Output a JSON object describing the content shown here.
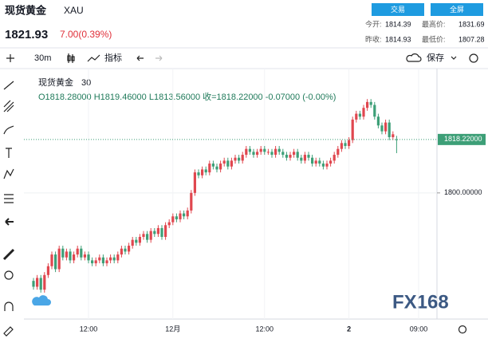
{
  "header": {
    "title": "现货黄金",
    "symbol": "XAU",
    "price": "1821.93",
    "change": "7.00(0.39%)",
    "buttons": [
      "交易",
      "全屏"
    ],
    "stats": [
      {
        "label": "今开:",
        "value": "1814.39"
      },
      {
        "label": "最高价:",
        "value": "1831.69"
      },
      {
        "label": "昨收:",
        "value": "1814.93"
      },
      {
        "label": "最低价:",
        "value": "1807.28"
      }
    ]
  },
  "toolbar": {
    "interval": "30m",
    "indicators": "指标",
    "save": "保存"
  },
  "watermark": "FX168",
  "chart_data": {
    "type": "candlestick",
    "legend": {
      "name": "现货黄金",
      "interval": "30",
      "ohlc": "O1818.28000 H1819.46000 L1813.56000 收=1818.22000 -0.07000 (-0.00%)"
    },
    "up_color": "#e0474f",
    "down_color": "#3d9f77",
    "categories": [
      null,
      null,
      null,
      null,
      null,
      null,
      null,
      null,
      null,
      null,
      null,
      null,
      null,
      null,
      null,
      "12:00",
      null,
      null,
      null,
      null,
      null,
      null,
      null,
      null,
      null,
      null,
      null,
      null,
      null,
      null,
      null,
      null,
      null,
      null,
      null,
      null,
      null,
      null,
      "12月",
      null,
      null,
      null,
      null,
      null,
      null,
      null,
      null,
      null,
      null,
      null,
      null,
      null,
      null,
      null,
      null,
      null,
      null,
      null,
      null,
      null,
      null,
      null,
      null,
      "12:00",
      null,
      null,
      null,
      null,
      null,
      null,
      null,
      null,
      null,
      null,
      null,
      null,
      null,
      null,
      null,
      null,
      null,
      null,
      null,
      null,
      null,
      null,
      "2",
      null,
      null,
      null,
      null,
      null,
      null,
      null,
      null,
      null,
      null,
      null,
      null,
      null,
      null,
      null,
      null,
      null,
      null,
      "09:00"
    ],
    "open": [
      1770,
      1768,
      1771,
      1767,
      1772,
      1775,
      1779,
      1774,
      1781,
      1778,
      1780,
      1777,
      1779,
      1781,
      1778,
      1779,
      1777,
      1776,
      1777,
      1778,
      1776,
      1777,
      1778,
      1777,
      1779,
      1781,
      1780,
      1782,
      1784,
      1783,
      1785,
      1786,
      1784,
      1787,
      1786,
      1788,
      1785,
      1789,
      1790,
      1792,
      1791,
      1793,
      1792,
      1794,
      1800,
      1807,
      1806,
      1808,
      1807,
      1810,
      1809,
      1808,
      1810,
      1811,
      1809,
      1811,
      1812,
      1811,
      1813,
      1815,
      1814,
      1813,
      1814,
      1815,
      1814,
      1814,
      1813,
      1815,
      1814,
      1813,
      1812,
      1813,
      1814,
      1812,
      1811,
      1813,
      1812,
      1810,
      1811,
      1810,
      1809,
      1810,
      1811,
      1813,
      1815,
      1817,
      1816,
      1818,
      1825,
      1827,
      1826,
      1829,
      1831,
      1830,
      1826,
      1823,
      1821,
      1824,
      1819,
      1818.28,
      null,
      null,
      null,
      null,
      null,
      null
    ],
    "high": [
      1771,
      1772,
      1772,
      1773,
      1776,
      1780,
      1780,
      1782,
      1782,
      1781,
      1781,
      1780,
      1782,
      1782,
      1780,
      1780,
      1778,
      1778,
      1779,
      1779,
      1778,
      1779,
      1779,
      1780,
      1782,
      1782,
      1783,
      1785,
      1785,
      1786,
      1787,
      1787,
      1788,
      1788,
      1789,
      1789,
      1790,
      1791,
      1793,
      1793,
      1794,
      1794,
      1795,
      1801,
      1808,
      1808,
      1809,
      1809,
      1811,
      1811,
      1810,
      1811,
      1812,
      1812,
      1812,
      1813,
      1813,
      1814,
      1816,
      1816,
      1815,
      1815,
      1816,
      1816,
      1815,
      1815,
      1816,
      1816,
      1815,
      1814,
      1814,
      1815,
      1815,
      1813,
      1814,
      1814,
      1813,
      1812,
      1812,
      1811,
      1811,
      1812,
      1814,
      1816,
      1818,
      1818,
      1819,
      1826,
      1828,
      1828,
      1830,
      1832,
      1832,
      1831,
      1827,
      1824,
      1825,
      1825,
      1821,
      1819.46,
      null,
      null,
      null,
      null,
      null,
      null
    ],
    "low": [
      1767,
      1767,
      1766,
      1766,
      1771,
      1774,
      1773,
      1773,
      1777,
      1777,
      1776,
      1776,
      1778,
      1777,
      1777,
      1776,
      1775,
      1775,
      1776,
      1775,
      1775,
      1776,
      1776,
      1776,
      1778,
      1779,
      1779,
      1781,
      1782,
      1782,
      1784,
      1783,
      1783,
      1785,
      1785,
      1784,
      1784,
      1788,
      1789,
      1790,
      1790,
      1791,
      1791,
      1793,
      1799,
      1805,
      1805,
      1806,
      1806,
      1808,
      1807,
      1807,
      1809,
      1808,
      1808,
      1810,
      1810,
      1810,
      1812,
      1813,
      1812,
      1812,
      1813,
      1813,
      1813,
      1812,
      1812,
      1813,
      1812,
      1811,
      1811,
      1812,
      1811,
      1810,
      1810,
      1811,
      1809,
      1809,
      1809,
      1808,
      1808,
      1809,
      1810,
      1812,
      1814,
      1815,
      1815,
      1817,
      1824,
      1825,
      1825,
      1828,
      1829,
      1825,
      1822,
      1820,
      1820,
      1818,
      1818,
      1813.56,
      null,
      null,
      null,
      null,
      null,
      null
    ],
    "close": [
      1768,
      1771,
      1767,
      1772,
      1775,
      1779,
      1774,
      1781,
      1778,
      1780,
      1777,
      1779,
      1781,
      1778,
      1779,
      1777,
      1776,
      1777,
      1778,
      1776,
      1777,
      1778,
      1777,
      1779,
      1781,
      1780,
      1782,
      1784,
      1783,
      1785,
      1786,
      1784,
      1787,
      1786,
      1788,
      1785,
      1789,
      1790,
      1792,
      1791,
      1793,
      1792,
      1794,
      1800,
      1807,
      1806,
      1808,
      1807,
      1810,
      1809,
      1808,
      1810,
      1811,
      1809,
      1811,
      1812,
      1811,
      1813,
      1815,
      1814,
      1813,
      1814,
      1815,
      1814,
      1814,
      1813,
      1815,
      1814,
      1813,
      1812,
      1813,
      1814,
      1812,
      1811,
      1813,
      1812,
      1810,
      1811,
      1810,
      1809,
      1810,
      1811,
      1813,
      1815,
      1817,
      1816,
      1818,
      1825,
      1827,
      1826,
      1829,
      1831,
      1830,
      1826,
      1823,
      1821,
      1824,
      1819,
      1820,
      1818.22,
      null,
      null,
      null,
      null,
      null,
      null
    ],
    "ylim": [
      1757.8,
      1841.3
    ],
    "yticks": [
      {
        "value": 1800,
        "label": "1800.00000"
      }
    ],
    "price_line": {
      "value": 1818.22,
      "label": "1818.22000"
    },
    "grid": true
  }
}
